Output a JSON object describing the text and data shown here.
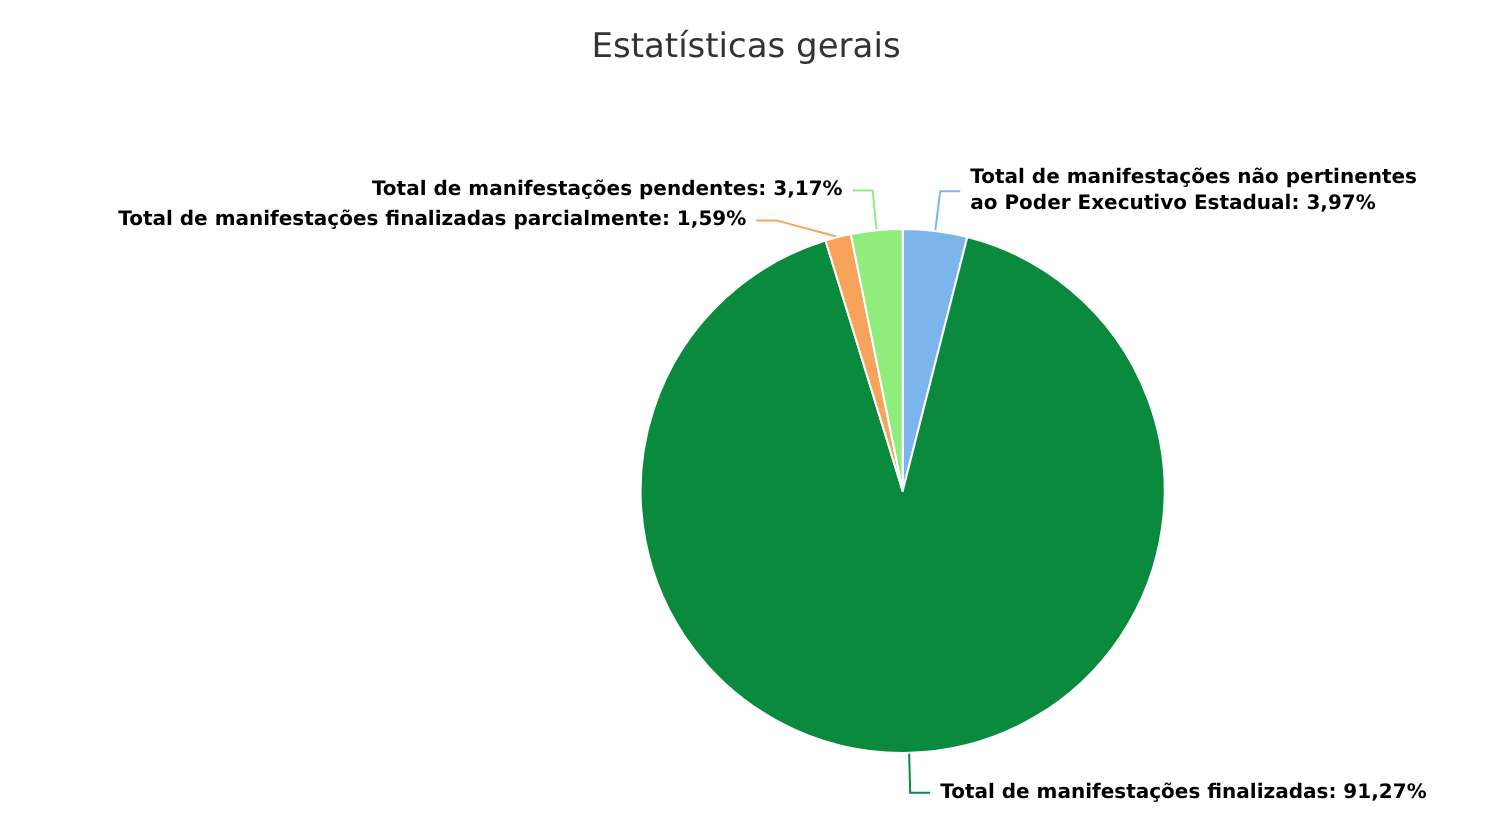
{
  "chart_data": {
    "type": "pie",
    "title": "Estatísticas gerais",
    "categories": [
      "Total de manifestações não pertinentes ao Poder Executivo Estadual",
      "Total de manifestações finalizadas",
      "Total de manifestações finalizadas parcialmente",
      "Total de manifestações pendentes"
    ],
    "values": [
      3.97,
      91.27,
      1.59,
      3.17
    ],
    "value_labels": [
      "3,97%",
      "91,27%",
      "1,59%",
      "3,17%"
    ],
    "colors": [
      "#7cb5ec",
      "#0a8a3c",
      "#f7a35c",
      "#90ed7d"
    ],
    "legend": false
  }
}
